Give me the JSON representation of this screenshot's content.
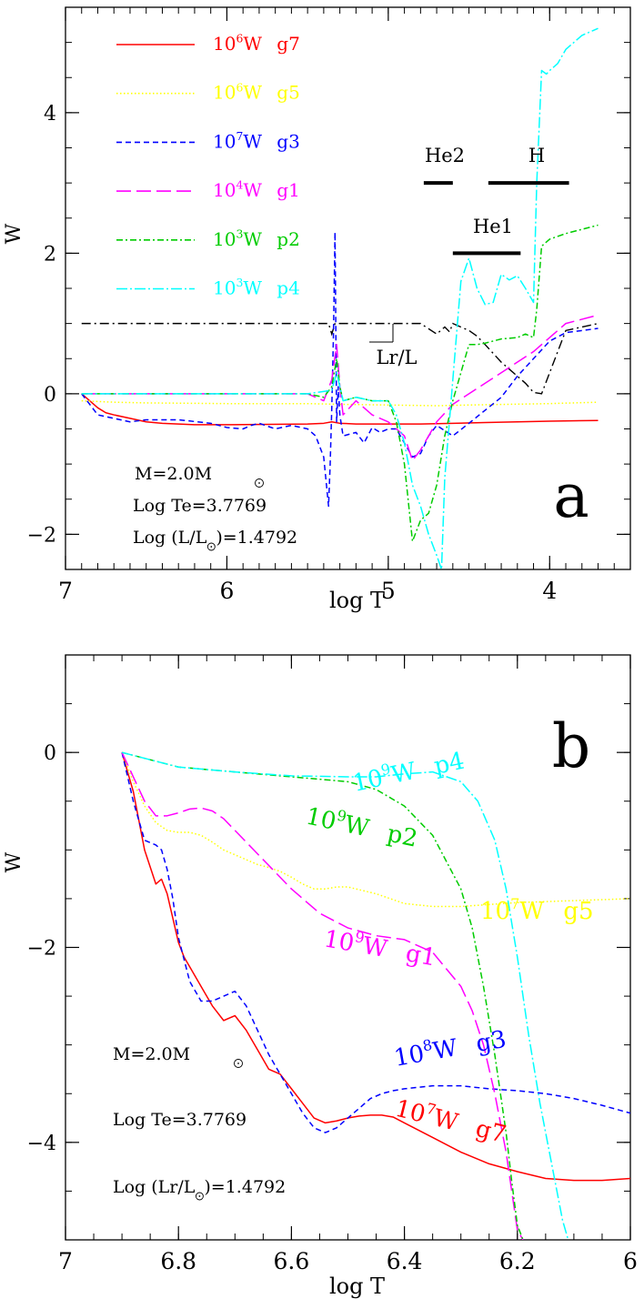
{
  "chart_data": [
    {
      "panel": "a",
      "type": "line",
      "panel_label": "a",
      "xlabel": "log T",
      "ylabel": "W",
      "xlim": [
        7.0,
        3.5
      ],
      "ylim": [
        -2.5,
        5.5
      ],
      "xticks": [
        7,
        6,
        5,
        4
      ],
      "xtick_labels": [
        "7",
        "6",
        "5",
        "4"
      ],
      "yticks": [
        -2,
        0,
        2,
        4
      ],
      "ytick_labels": [
        "−2",
        "0",
        "2",
        "4"
      ],
      "legend": [
        {
          "scale": "10",
          "exp": "6",
          "unit": "W",
          "mode": "g7",
          "color": "#ff0000",
          "dash": ""
        },
        {
          "scale": "10",
          "exp": "6",
          "unit": "W",
          "mode": "g5",
          "color": "#ffff00",
          "dash": "1.5,2.5"
        },
        {
          "scale": "10",
          "exp": "7",
          "unit": "W",
          "mode": "g3",
          "color": "#0000ff",
          "dash": "6,4"
        },
        {
          "scale": "10",
          "exp": "4",
          "unit": "W",
          "mode": "g1",
          "color": "#ff00ff",
          "dash": "16,6"
        },
        {
          "scale": "10",
          "exp": "3",
          "unit": "W",
          "mode": "p2",
          "color": "#00cc00",
          "dash": "7,3,2,3"
        },
        {
          "scale": "10",
          "exp": "3",
          "unit": "W",
          "mode": "p4",
          "color": "#00ffff",
          "dash": "12,3,2,3"
        }
      ],
      "info": {
        "mass": "M=2.0M",
        "logte": "Log Te=3.7769",
        "loglum": "Log (L/L",
        "loglum_tail": ")=1.4792"
      },
      "annotations": {
        "lr": "Lr/L",
        "he2": "He2",
        "h": "H",
        "he1": "He1"
      },
      "zones": [
        {
          "name": "He2",
          "x_from": 4.78,
          "x_to": 4.6,
          "y": 3.0
        },
        {
          "name": "H",
          "x_from": 4.38,
          "x_to": 3.88,
          "y": 3.0
        },
        {
          "name": "He1",
          "x_from": 4.6,
          "x_to": 4.18,
          "y": 2.0
        }
      ],
      "series": [
        {
          "mode": "g7",
          "color": "#ff0000",
          "dash": "",
          "x": [
            6.9,
            6.85,
            6.8,
            6.75,
            6.7,
            6.6,
            6.5,
            6.4,
            6.2,
            6.0,
            5.5,
            5.4,
            5.35,
            5.3,
            5.2,
            5.0,
            4.8,
            4.6,
            4.4,
            4.2,
            4.0,
            3.7
          ],
          "y": [
            0,
            -0.1,
            -0.2,
            -0.27,
            -0.3,
            -0.35,
            -0.4,
            -0.42,
            -0.44,
            -0.44,
            -0.43,
            -0.42,
            -0.4,
            -0.42,
            -0.43,
            -0.43,
            -0.43,
            -0.42,
            -0.41,
            -0.4,
            -0.39,
            -0.38
          ]
        },
        {
          "mode": "g5",
          "color": "#ffff00",
          "dash": "1.5,2.5",
          "x": [
            6.9,
            6.7,
            6.5,
            6.0,
            5.5,
            5.3,
            5.0,
            4.7,
            4.5,
            4.0,
            3.7
          ],
          "y": [
            -0.1,
            -0.12,
            -0.13,
            -0.14,
            -0.14,
            -0.15,
            -0.16,
            -0.17,
            -0.16,
            -0.14,
            -0.12
          ]
        },
        {
          "mode": "g3",
          "color": "#0000ff",
          "dash": "6,4",
          "x": [
            6.9,
            6.8,
            6.6,
            6.5,
            6.3,
            6.1,
            6.0,
            5.9,
            5.85,
            5.8,
            5.7,
            5.6,
            5.5,
            5.45,
            5.4,
            5.37,
            5.36,
            5.35,
            5.34,
            5.33,
            5.32,
            5.31,
            5.3,
            5.28,
            5.2,
            5.15,
            5.1,
            5.05,
            5.0,
            4.95,
            4.9,
            4.85,
            4.8,
            4.75,
            4.7,
            4.6,
            4.5,
            4.3,
            4.2,
            4.1,
            4.0,
            3.9,
            3.7
          ],
          "y": [
            0,
            -0.3,
            -0.4,
            -0.37,
            -0.37,
            -0.42,
            -0.48,
            -0.5,
            -0.45,
            -0.42,
            -0.5,
            -0.45,
            -0.5,
            -0.6,
            -0.9,
            -1.6,
            -1.0,
            -0.2,
            0.8,
            2.3,
            -0.4,
            0.1,
            -0.3,
            -0.6,
            -0.55,
            -0.7,
            -0.48,
            -0.55,
            -0.5,
            -0.5,
            -0.7,
            -0.9,
            -0.85,
            -0.6,
            -0.45,
            -0.6,
            -0.42,
            -0.05,
            0.25,
            0.5,
            0.75,
            0.87,
            0.93
          ]
        },
        {
          "mode": "g1",
          "color": "#ff00ff",
          "dash": "16,6",
          "x": [
            6.9,
            6.5,
            6.0,
            5.5,
            5.4,
            5.35,
            5.32,
            5.3,
            5.28,
            5.2,
            5.15,
            5.1,
            5.0,
            4.9,
            4.85,
            4.8,
            4.7,
            4.6,
            4.5,
            4.3,
            4.1,
            4.0,
            3.9,
            3.7
          ],
          "y": [
            0,
            0,
            0,
            0,
            -0.1,
            0.2,
            0.7,
            0.1,
            -0.3,
            -0.1,
            -0.2,
            -0.3,
            -0.4,
            -0.6,
            -0.95,
            -0.8,
            -0.4,
            -0.15,
            0.0,
            0.3,
            0.6,
            0.8,
            1.0,
            1.12
          ]
        },
        {
          "mode": "p2",
          "color": "#00cc00",
          "dash": "7,3,2,3",
          "x": [
            6.9,
            6.0,
            5.5,
            5.4,
            5.35,
            5.32,
            5.3,
            5.28,
            5.2,
            5.1,
            5.0,
            4.95,
            4.9,
            4.85,
            4.8,
            4.75,
            4.7,
            4.65,
            4.6,
            4.55,
            4.5,
            4.45,
            4.4,
            4.3,
            4.2,
            4.15,
            4.1,
            4.08,
            4.05,
            4.0,
            3.9,
            3.7
          ],
          "y": [
            0,
            0,
            0,
            -0.05,
            0.1,
            0.5,
            0.1,
            -0.1,
            -0.05,
            -0.1,
            -0.1,
            -0.4,
            -1.0,
            -2.1,
            -1.8,
            -1.7,
            -1.3,
            -0.6,
            -0.1,
            0.3,
            0.7,
            0.7,
            0.72,
            0.78,
            0.8,
            0.85,
            0.8,
            1.2,
            2.1,
            2.2,
            2.28,
            2.4
          ]
        },
        {
          "mode": "p4",
          "color": "#00ffff",
          "dash": "12,3,2,3",
          "x": [
            6.9,
            6.0,
            5.5,
            5.35,
            5.32,
            5.3,
            5.28,
            5.2,
            5.1,
            5.0,
            4.95,
            4.9,
            4.85,
            4.8,
            4.75,
            4.7,
            4.67,
            4.65,
            4.6,
            4.55,
            4.5,
            4.45,
            4.4,
            4.35,
            4.3,
            4.25,
            4.2,
            4.15,
            4.1,
            4.08,
            4.05,
            4.02,
            4.0,
            3.95,
            3.9,
            3.8,
            3.7
          ],
          "y": [
            0,
            0,
            0,
            0.05,
            0.3,
            0.1,
            -0.1,
            -0.05,
            -0.1,
            -0.1,
            -0.3,
            -0.7,
            -1.3,
            -1.6,
            -2.0,
            -2.3,
            -2.5,
            -1.2,
            0.2,
            1.6,
            1.93,
            1.5,
            1.27,
            1.3,
            1.7,
            1.62,
            1.68,
            1.5,
            1.3,
            3.0,
            4.6,
            4.55,
            4.6,
            4.7,
            4.9,
            5.1,
            5.2
          ]
        }
      ],
      "lr_curve": {
        "color": "#000000",
        "dash": "10,4,2,4",
        "x": [
          6.9,
          6.5,
          6.0,
          5.5,
          5.37,
          5.35,
          5.33,
          5.3,
          5.2,
          5.0,
          4.8,
          4.7,
          4.65,
          4.62,
          4.6,
          4.55,
          4.5,
          4.45,
          4.4,
          4.3,
          4.2,
          4.15,
          4.1,
          4.05,
          4.0,
          3.9,
          3.7
        ],
        "y": [
          1.0,
          1.0,
          1.0,
          1.0,
          1.0,
          0.85,
          1.0,
          1.0,
          1.0,
          1.0,
          1.0,
          0.85,
          0.95,
          0.88,
          1.0,
          0.95,
          0.9,
          0.82,
          0.7,
          0.45,
          0.25,
          0.15,
          0.02,
          0.0,
          0.3,
          0.9,
          1.0
        ]
      }
    },
    {
      "panel": "b",
      "type": "line",
      "panel_label": "b",
      "xlabel": "log T",
      "ylabel": "W",
      "xlim": [
        7.0,
        6.0
      ],
      "ylim": [
        -5.0,
        1.0
      ],
      "xticks": [
        7.0,
        6.8,
        6.6,
        6.4,
        6.2,
        6.0
      ],
      "xtick_labels": [
        "7",
        "6.8",
        "6.6",
        "6.4",
        "6.2",
        "6"
      ],
      "yticks": [
        -4,
        -2,
        0
      ],
      "ytick_labels": [
        "−4",
        "−2",
        "0"
      ],
      "info": {
        "mass": "M=2.0M",
        "logte": "Log Te=3.7769",
        "loglum": "Log (Lr/L",
        "loglum_tail": ")=1.4792"
      },
      "series": [
        {
          "mode": "g7",
          "color": "#ff0000",
          "dash": "",
          "label": {
            "scale": "10",
            "exp": "7",
            "unit": "W",
            "mode": "g7"
          },
          "x": [
            6.9,
            6.88,
            6.86,
            6.84,
            6.83,
            6.82,
            6.81,
            6.8,
            6.79,
            6.78,
            6.76,
            6.74,
            6.72,
            6.7,
            6.68,
            6.66,
            6.64,
            6.62,
            6.6,
            6.58,
            6.56,
            6.54,
            6.52,
            6.5,
            6.48,
            6.46,
            6.44,
            6.42,
            6.4,
            6.35,
            6.3,
            6.25,
            6.2,
            6.15,
            6.1,
            6.05,
            6.0
          ],
          "y": [
            0,
            -0.4,
            -1.0,
            -1.35,
            -1.3,
            -1.45,
            -1.7,
            -1.95,
            -2.1,
            -2.2,
            -2.4,
            -2.6,
            -2.75,
            -2.7,
            -2.85,
            -3.05,
            -3.25,
            -3.3,
            -3.45,
            -3.6,
            -3.75,
            -3.8,
            -3.78,
            -3.75,
            -3.73,
            -3.72,
            -3.72,
            -3.74,
            -3.8,
            -3.95,
            -4.1,
            -4.22,
            -4.3,
            -4.37,
            -4.39,
            -4.39,
            -4.37
          ]
        },
        {
          "mode": "g5",
          "color": "#ffff00",
          "dash": "1.5,2.5",
          "label": {
            "scale": "10",
            "exp": "7",
            "unit": "W",
            "mode": "g5"
          },
          "x": [
            6.9,
            6.88,
            6.86,
            6.84,
            6.82,
            6.8,
            6.78,
            6.76,
            6.74,
            6.72,
            6.7,
            6.68,
            6.66,
            6.64,
            6.62,
            6.6,
            6.58,
            6.56,
            6.54,
            6.52,
            6.5,
            6.45,
            6.4,
            6.35,
            6.3,
            6.25,
            6.2,
            6.15,
            6.1,
            6.05,
            6.0
          ],
          "y": [
            0,
            -0.3,
            -0.55,
            -0.72,
            -0.8,
            -0.82,
            -0.82,
            -0.85,
            -0.92,
            -1.0,
            -1.05,
            -1.1,
            -1.15,
            -1.18,
            -1.22,
            -1.28,
            -1.35,
            -1.4,
            -1.4,
            -1.38,
            -1.38,
            -1.45,
            -1.55,
            -1.58,
            -1.58,
            -1.56,
            -1.54,
            -1.53,
            -1.52,
            -1.51,
            -1.5
          ]
        },
        {
          "mode": "g3",
          "color": "#0000ff",
          "dash": "6,4",
          "label": {
            "scale": "10",
            "exp": "8",
            "unit": "W",
            "mode": "g3"
          },
          "x": [
            6.9,
            6.88,
            6.86,
            6.84,
            6.83,
            6.82,
            6.81,
            6.8,
            6.78,
            6.76,
            6.74,
            6.72,
            6.7,
            6.68,
            6.66,
            6.64,
            6.62,
            6.6,
            6.58,
            6.56,
            6.54,
            6.52,
            6.5,
            6.48,
            6.46,
            6.44,
            6.42,
            6.4,
            6.35,
            6.3,
            6.25,
            6.2,
            6.15,
            6.1,
            6.05,
            6.0
          ],
          "y": [
            0,
            -0.5,
            -0.9,
            -0.95,
            -1.0,
            -1.2,
            -1.5,
            -1.9,
            -2.35,
            -2.55,
            -2.55,
            -2.5,
            -2.45,
            -2.6,
            -2.85,
            -3.1,
            -3.3,
            -3.5,
            -3.7,
            -3.85,
            -3.9,
            -3.85,
            -3.75,
            -3.65,
            -3.55,
            -3.5,
            -3.47,
            -3.45,
            -3.42,
            -3.42,
            -3.45,
            -3.47,
            -3.5,
            -3.55,
            -3.62,
            -3.7
          ]
        },
        {
          "mode": "g1",
          "color": "#ff00ff",
          "dash": "16,6",
          "label": {
            "scale": "10",
            "exp": "9",
            "unit": "W",
            "mode": "g1"
          },
          "x": [
            6.9,
            6.88,
            6.86,
            6.84,
            6.82,
            6.8,
            6.78,
            6.76,
            6.74,
            6.72,
            6.7,
            6.65,
            6.6,
            6.55,
            6.5,
            6.45,
            6.4,
            6.35,
            6.3,
            6.28,
            6.26,
            6.24,
            6.22,
            6.21,
            6.2,
            6.19
          ],
          "y": [
            0,
            -0.25,
            -0.5,
            -0.65,
            -0.65,
            -0.62,
            -0.58,
            -0.57,
            -0.6,
            -0.68,
            -0.8,
            -1.1,
            -1.4,
            -1.65,
            -1.8,
            -1.88,
            -1.92,
            -2.05,
            -2.4,
            -2.65,
            -3.0,
            -3.5,
            -4.1,
            -4.5,
            -4.9,
            -5.0
          ]
        },
        {
          "mode": "p2",
          "color": "#00cc00",
          "dash": "7,3,2,3",
          "label": {
            "scale": "10",
            "exp": "9",
            "unit": "W",
            "mode": "p2"
          },
          "x": [
            6.9,
            6.8,
            6.7,
            6.6,
            6.5,
            6.45,
            6.4,
            6.35,
            6.3,
            6.28,
            6.26,
            6.24,
            6.22,
            6.21,
            6.2,
            6.19
          ],
          "y": [
            0,
            -0.15,
            -0.2,
            -0.25,
            -0.3,
            -0.38,
            -0.55,
            -0.85,
            -1.4,
            -1.8,
            -2.4,
            -3.1,
            -3.9,
            -4.4,
            -4.85,
            -5.0
          ]
        },
        {
          "mode": "p4",
          "color": "#00ffff",
          "dash": "12,3,2,3",
          "label": {
            "scale": "10",
            "exp": "9",
            "unit": "W",
            "mode": "p4"
          },
          "x": [
            6.9,
            6.8,
            6.7,
            6.6,
            6.5,
            6.45,
            6.4,
            6.35,
            6.3,
            6.27,
            6.24,
            6.22,
            6.2,
            6.18,
            6.16,
            6.14,
            6.13,
            6.12,
            6.11
          ],
          "y": [
            0,
            -0.15,
            -0.2,
            -0.24,
            -0.25,
            -0.25,
            -0.22,
            -0.2,
            -0.3,
            -0.5,
            -0.9,
            -1.4,
            -2.1,
            -2.9,
            -3.6,
            -4.2,
            -4.5,
            -4.8,
            -5.0
          ]
        }
      ]
    }
  ]
}
